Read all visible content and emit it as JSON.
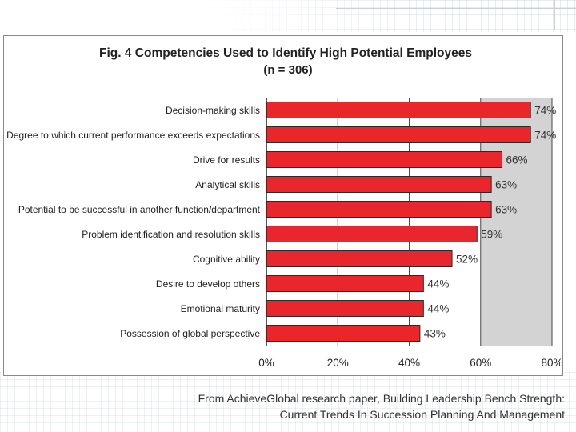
{
  "chart_data": {
    "type": "bar",
    "orientation": "horizontal",
    "title": "Fig. 4 Competencies Used to Identify High Potential Employees",
    "subtitle": "(n = 306)",
    "categories": [
      "Decision-making skills",
      "Degree to which current performance exceeds expectations",
      "Drive for results",
      "Analytical skills",
      "Potential to be successful in another function/department",
      "Problem identification and resolution skills",
      "Cognitive ability",
      "Desire to develop others",
      "Emotional maturity",
      "Possession of global perspective"
    ],
    "values": [
      74,
      74,
      66,
      63,
      63,
      59,
      52,
      44,
      44,
      43
    ],
    "value_labels": [
      "74%",
      "74%",
      "66%",
      "63%",
      "63%",
      "59%",
      "52%",
      "44%",
      "44%",
      "43%"
    ],
    "xlim": [
      0,
      80
    ],
    "x_ticks": [
      0,
      20,
      40,
      60,
      80
    ],
    "x_tick_labels": [
      "0%",
      "20%",
      "40%",
      "60%",
      "80%"
    ],
    "grid": true,
    "bar_color": "#e8262b",
    "plot_bg_color": "#d3d3d3"
  },
  "caption": {
    "line1": "From AchieveGlobal research paper, Building Leadership Bench Strength:",
    "line2": "Current Trends In Succession Planning And Management"
  }
}
